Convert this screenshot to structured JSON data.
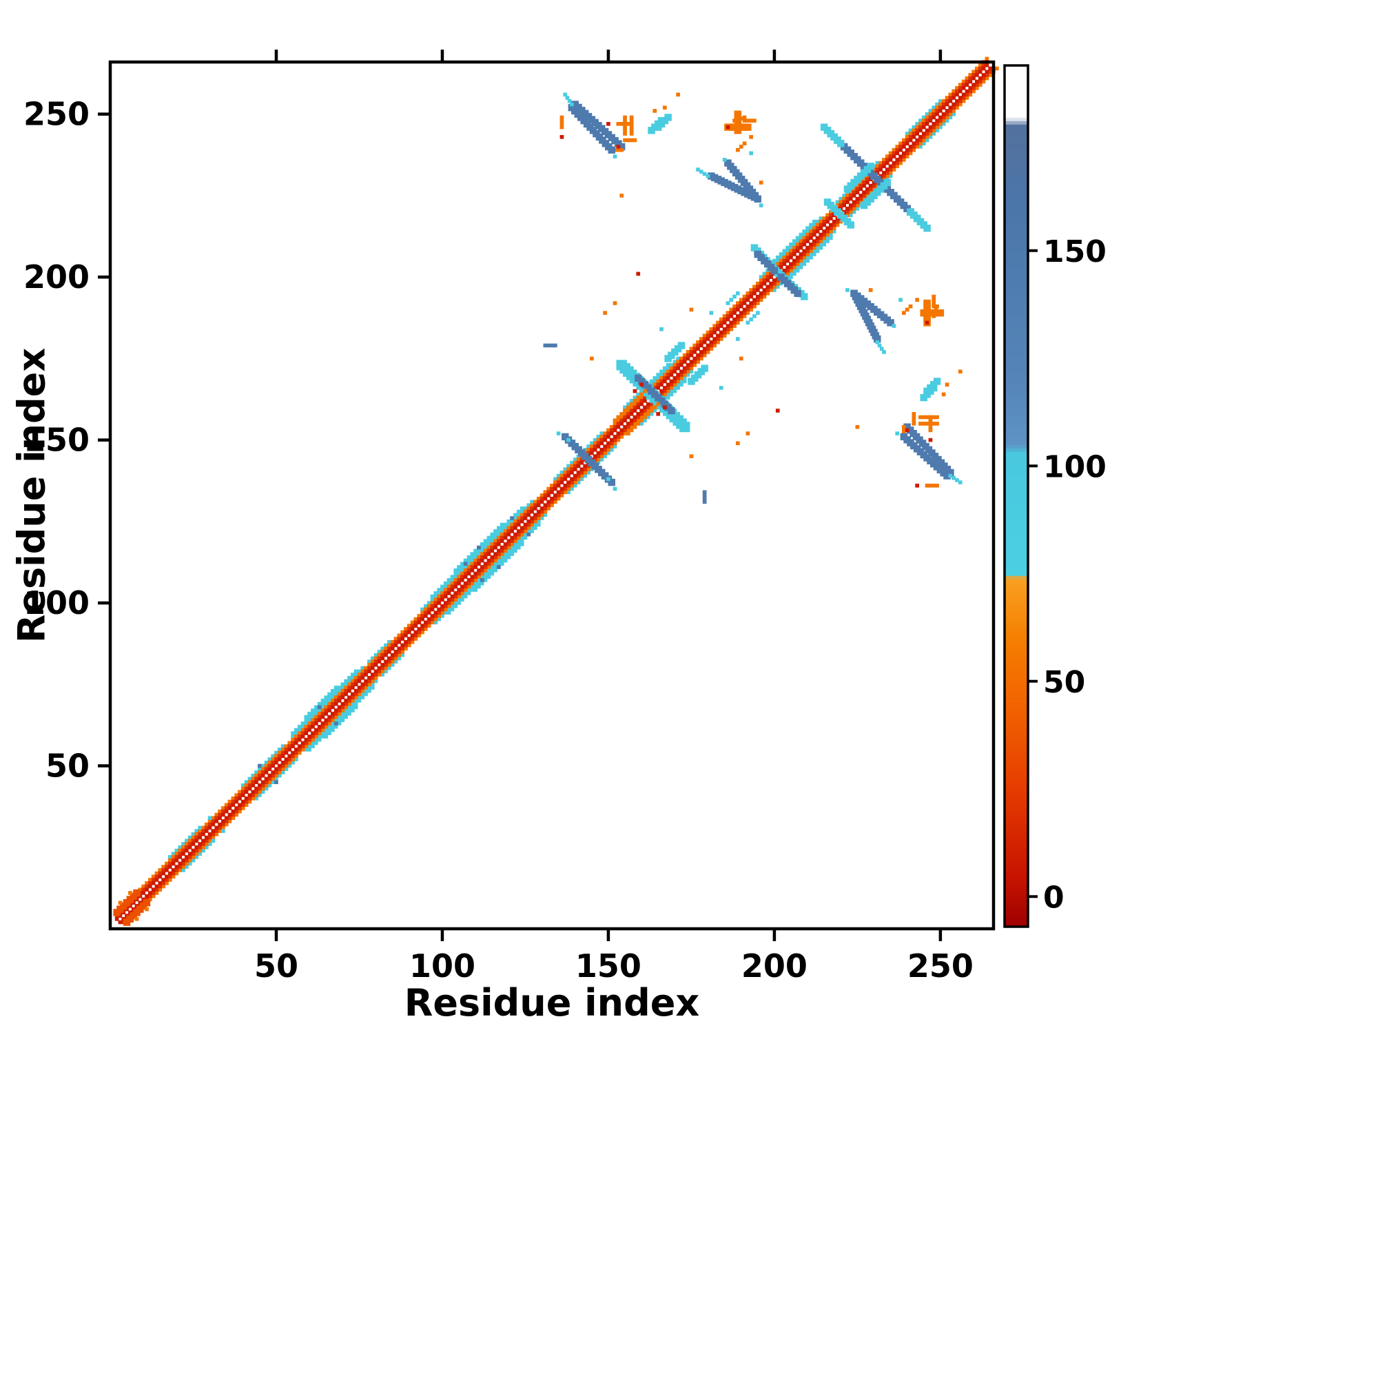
{
  "chart_data": {
    "type": "heatmap",
    "title": "",
    "xlabel": "Residue index",
    "ylabel": "Residue index",
    "x_range": [
      0,
      266
    ],
    "y_range": [
      0,
      266
    ],
    "x_ticks": [
      50,
      100,
      150,
      200,
      250
    ],
    "y_ticks": [
      50,
      100,
      150,
      200,
      250
    ],
    "grid": false,
    "symmetric": true,
    "colorbar": {
      "vmin": -7,
      "vmax": 193,
      "ticks": [
        0,
        50,
        100,
        150
      ]
    },
    "colormap_stops": [
      {
        "v": -7,
        "c": "#9e0000"
      },
      {
        "v": 5,
        "c": "#c81400"
      },
      {
        "v": 25,
        "c": "#e63c00"
      },
      {
        "v": 45,
        "c": "#f26400"
      },
      {
        "v": 60,
        "c": "#f57f00"
      },
      {
        "v": 74,
        "c": "#f9a022"
      },
      {
        "v": 75,
        "c": "#4ad0e2"
      },
      {
        "v": 103,
        "c": "#49c8de"
      },
      {
        "v": 105,
        "c": "#5e93c5"
      },
      {
        "v": 120,
        "c": "#5585b8"
      },
      {
        "v": 160,
        "c": "#4b76aa"
      },
      {
        "v": 179,
        "c": "#53719e"
      },
      {
        "v": 181,
        "c": "#ffffff"
      },
      {
        "v": 193,
        "c": "#ffffff"
      }
    ],
    "value_key": {
      "red": 8,
      "orange": 55,
      "cyan": 88,
      "blue": 150
    },
    "diagonal_bands": [
      {
        "from": 18,
        "to": 26,
        "offset": 4,
        "v": 88
      },
      {
        "from": 40,
        "to": 52,
        "offset": 4,
        "v": 88
      },
      {
        "from": 55,
        "to": 76,
        "offset": 4,
        "v": 88
      },
      {
        "from": 55,
        "to": 74,
        "offset": 5,
        "v": 88
      },
      {
        "from": 59,
        "to": 68,
        "offset": 6,
        "v": 88
      },
      {
        "from": 78,
        "to": 84,
        "offset": 4,
        "v": 88
      },
      {
        "from": 94,
        "to": 127,
        "offset": 4,
        "v": 88
      },
      {
        "from": 97,
        "to": 124,
        "offset": 5,
        "v": 88
      },
      {
        "from": 104,
        "to": 118,
        "offset": 6,
        "v": 88
      },
      {
        "from": 134,
        "to": 148,
        "offset": 4,
        "v": 88
      },
      {
        "from": 152,
        "to": 171,
        "offset": 4,
        "v": 88
      },
      {
        "from": 155,
        "to": 168,
        "offset": 5,
        "v": 88
      },
      {
        "from": 196,
        "to": 214,
        "offset": 4,
        "v": 88
      },
      {
        "from": 200,
        "to": 212,
        "offset": 5,
        "v": 88
      },
      {
        "from": 219,
        "to": 231,
        "offset": 4,
        "v": 88
      },
      {
        "from": 240,
        "to": 250,
        "offset": 4,
        "v": 88
      },
      {
        "from": 4,
        "to": 264,
        "offset": 3,
        "v": 55
      },
      {
        "from": 2,
        "to": 264,
        "offset": 2,
        "v": 20
      },
      {
        "from": 2,
        "to": 264,
        "offset": 1,
        "v": 8
      }
    ],
    "segments": [
      {
        "x1": 140,
        "y1": 253,
        "x2": 154,
        "y2": 240,
        "w": 2,
        "v": 150
      },
      {
        "x1": 155,
        "y1": 242,
        "x2": 158,
        "y2": 242,
        "w": 1,
        "v": 55
      },
      {
        "x1": 157,
        "y1": 244,
        "x2": 157,
        "y2": 249,
        "w": 1,
        "v": 55
      },
      {
        "x1": 151,
        "y1": 239,
        "x2": 154,
        "y2": 239,
        "w": 1,
        "v": 55
      },
      {
        "x1": 165,
        "y1": 246,
        "x2": 168,
        "y2": 249,
        "w": 2,
        "v": 88
      },
      {
        "x1": 186,
        "y1": 246,
        "x2": 192,
        "y2": 246,
        "w": 2,
        "v": 55
      },
      {
        "x1": 188,
        "y1": 248,
        "x2": 191,
        "y2": 249,
        "w": 1,
        "v": 55
      },
      {
        "x1": 181,
        "y1": 231,
        "x2": 195,
        "y2": 224,
        "w": 2,
        "v": 150
      },
      {
        "x1": 177,
        "y1": 233,
        "x2": 180,
        "y2": 231,
        "w": 1,
        "v": 88
      },
      {
        "x1": 220,
        "y1": 241,
        "x2": 243,
        "y2": 218,
        "w": 2,
        "v": 150
      },
      {
        "x1": 216,
        "y1": 245,
        "x2": 220,
        "y2": 241,
        "w": 2,
        "v": 88
      },
      {
        "x1": 243,
        "y1": 218,
        "x2": 246,
        "y2": 215,
        "w": 2,
        "v": 88
      },
      {
        "x1": 222,
        "y1": 227,
        "x2": 229,
        "y2": 234,
        "w": 2,
        "v": 88
      },
      {
        "x1": 224,
        "y1": 195,
        "x2": 235,
        "y2": 186,
        "w": 2,
        "v": 150
      },
      {
        "x1": 245,
        "y1": 189,
        "x2": 250,
        "y2": 189,
        "w": 2,
        "v": 55
      },
      {
        "x1": 248,
        "y1": 191,
        "x2": 248,
        "y2": 194,
        "w": 1,
        "v": 55
      },
      {
        "x1": 239,
        "y1": 151,
        "x2": 252,
        "y2": 139,
        "w": 2,
        "v": 150
      },
      {
        "x1": 253,
        "y1": 139,
        "x2": 256,
        "y2": 137,
        "w": 1,
        "v": 88
      },
      {
        "x1": 244,
        "y1": 155,
        "x2": 249,
        "y2": 155,
        "w": 1,
        "v": 55
      },
      {
        "x1": 247,
        "y1": 153,
        "x2": 247,
        "y2": 157,
        "w": 1,
        "v": 55
      },
      {
        "x1": 245,
        "y1": 163,
        "x2": 248,
        "y2": 166,
        "w": 2,
        "v": 88
      },
      {
        "x1": 154,
        "y1": 173,
        "x2": 172,
        "y2": 155,
        "w": 3,
        "v": 88
      },
      {
        "x1": 159,
        "y1": 169,
        "x2": 166,
        "y2": 162,
        "w": 2,
        "v": 150
      },
      {
        "x1": 152,
        "y1": 156,
        "x2": 161,
        "y2": 165,
        "w": 1,
        "v": 55
      },
      {
        "x1": 168,
        "y1": 175,
        "x2": 172,
        "y2": 179,
        "w": 2,
        "v": 88
      },
      {
        "x1": 137,
        "y1": 151,
        "x2": 149,
        "y2": 139,
        "w": 2,
        "v": 150
      },
      {
        "x1": 194,
        "y1": 209,
        "x2": 206,
        "y2": 196,
        "w": 2,
        "v": 88
      },
      {
        "x1": 195,
        "y1": 207,
        "x2": 200,
        "y2": 202,
        "w": 2,
        "v": 150
      },
      {
        "x1": 186,
        "y1": 192,
        "x2": 189,
        "y2": 195,
        "w": 1,
        "v": 88
      },
      {
        "x1": 217,
        "y1": 222,
        "x2": 223,
        "y2": 216,
        "w": 2,
        "v": 88
      },
      {
        "x1": 246,
        "y1": 136,
        "x2": 249,
        "y2": 136,
        "w": 1,
        "v": 55
      },
      {
        "x1": 131,
        "y1": 179,
        "x2": 134,
        "y2": 179,
        "w": 1,
        "v": 150
      },
      {
        "x1": 2,
        "y1": 5,
        "x2": 8,
        "y2": 11,
        "w": 2,
        "v": 35
      }
    ],
    "points": [
      [
        135,
        152,
        88
      ],
      [
        150,
        138,
        88
      ],
      [
        222,
        196,
        88
      ],
      [
        236,
        185,
        88
      ],
      [
        237,
        152,
        88
      ],
      [
        238,
        193,
        88
      ],
      [
        154,
        225,
        55
      ],
      [
        196,
        229,
        55
      ],
      [
        240,
        190,
        55
      ],
      [
        239,
        189,
        55
      ],
      [
        149,
        189,
        55
      ],
      [
        152,
        192,
        55
      ],
      [
        145,
        175,
        55
      ],
      [
        175,
        190,
        55
      ],
      [
        251,
        164,
        55
      ],
      [
        252,
        167,
        55
      ],
      [
        191,
        241,
        55
      ],
      [
        193,
        243,
        55
      ],
      [
        171,
        256,
        55
      ],
      [
        159,
        201,
        8
      ],
      [
        246,
        186,
        8
      ],
      [
        153,
        240,
        8
      ],
      [
        247,
        150,
        8
      ],
      [
        243,
        136,
        8
      ],
      [
        158,
        165,
        8
      ],
      [
        160,
        167,
        8
      ],
      [
        63,
        68,
        150
      ],
      [
        107,
        112,
        150
      ],
      [
        111,
        117,
        150
      ],
      [
        45,
        50,
        150
      ],
      [
        121,
        126,
        150
      ],
      [
        27,
        31,
        88
      ],
      [
        30,
        34,
        88
      ],
      [
        166,
        184,
        88
      ],
      [
        181,
        189,
        88
      ],
      [
        3,
        8,
        55
      ],
      [
        6,
        11,
        55
      ]
    ]
  }
}
